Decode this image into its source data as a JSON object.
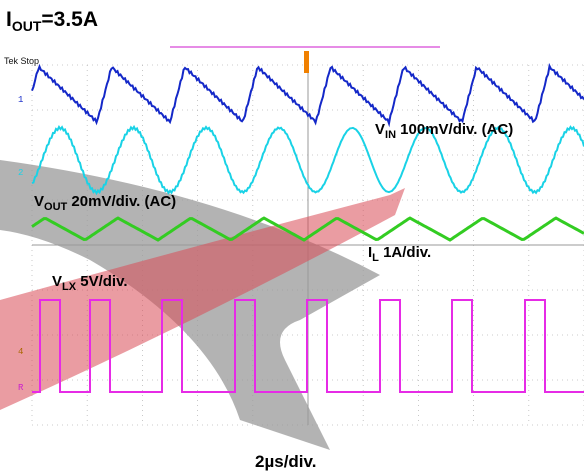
{
  "title": {
    "main": "I",
    "sub": "OUT",
    "rest": "=3.5A"
  },
  "scope": {
    "status": "Tek Stop",
    "channel_markers": [
      "1",
      "2",
      "4",
      "R"
    ],
    "colors": {
      "ch1": "#1428c8",
      "ch2": "#19d2e6",
      "ch3": "#33cc22",
      "ch4": "#e62be6",
      "grid": "#bbbbbb",
      "arrow": "#e02a2a"
    }
  },
  "labels": {
    "vin": {
      "main": "V",
      "sub": "IN",
      "rest": " 100mV/div. (AC)"
    },
    "vout": {
      "main": "V",
      "sub": "OUT",
      "rest": "  20mV/div. (AC)"
    },
    "il": {
      "main": "I",
      "sub": "L",
      "rest": "     1A/div."
    },
    "vlx": {
      "main": "V",
      "sub": "LX",
      "rest": "     5V/div."
    }
  },
  "timebase": "2µs/div."
}
